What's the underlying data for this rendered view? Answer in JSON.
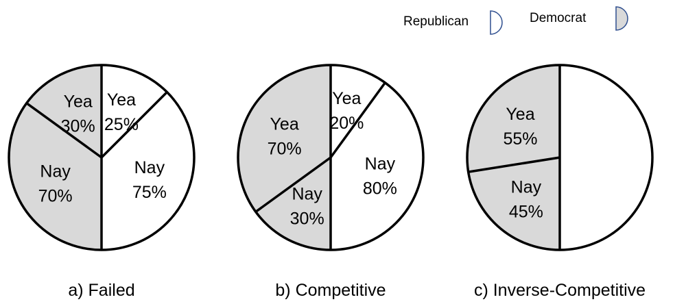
{
  "legend": [
    {
      "label": "Republican",
      "color": "#ffffff",
      "stroke": "#2f4f8f"
    },
    {
      "label": "Democrat",
      "color": "#d9d9d9",
      "stroke": "#2f4f8f"
    }
  ],
  "chart_data": [
    {
      "type": "pie",
      "caption": "a) Failed",
      "left_half": {
        "party": "Democrat",
        "yea_pct": 30,
        "nay_pct": 70,
        "yea_label": [
          "Yea",
          "30%"
        ],
        "nay_label": [
          "Nay",
          "70%"
        ]
      },
      "right_half": {
        "party": "Republican",
        "yea_pct": 25,
        "nay_pct": 75,
        "yea_label": [
          "Yea",
          "25%"
        ],
        "nay_label": [
          "Nay",
          "75%"
        ]
      }
    },
    {
      "type": "pie",
      "caption": "b) Competitive",
      "left_half": {
        "party": "Democrat",
        "yea_pct": 70,
        "nay_pct": 30,
        "yea_label": [
          "Yea",
          "70%"
        ],
        "nay_label": [
          "Nay",
          "30%"
        ]
      },
      "right_half": {
        "party": "Republican",
        "yea_pct": 20,
        "nay_pct": 80,
        "yea_label": [
          "Yea",
          "20%"
        ],
        "nay_label": [
          "Nay",
          "80%"
        ]
      }
    },
    {
      "type": "pie",
      "caption": "c) Inverse-Competitive",
      "left_half": {
        "party": "Democrat",
        "yea_pct": 55,
        "nay_pct": 45,
        "yea_label": [
          "Yea",
          "55%"
        ],
        "nay_label": [
          "Nay",
          "45%"
        ]
      },
      "right_half": {
        "party": "Republican",
        "yea_pct": 0,
        "nay_pct": 100,
        "yea_label": null,
        "nay_label": null
      }
    }
  ]
}
